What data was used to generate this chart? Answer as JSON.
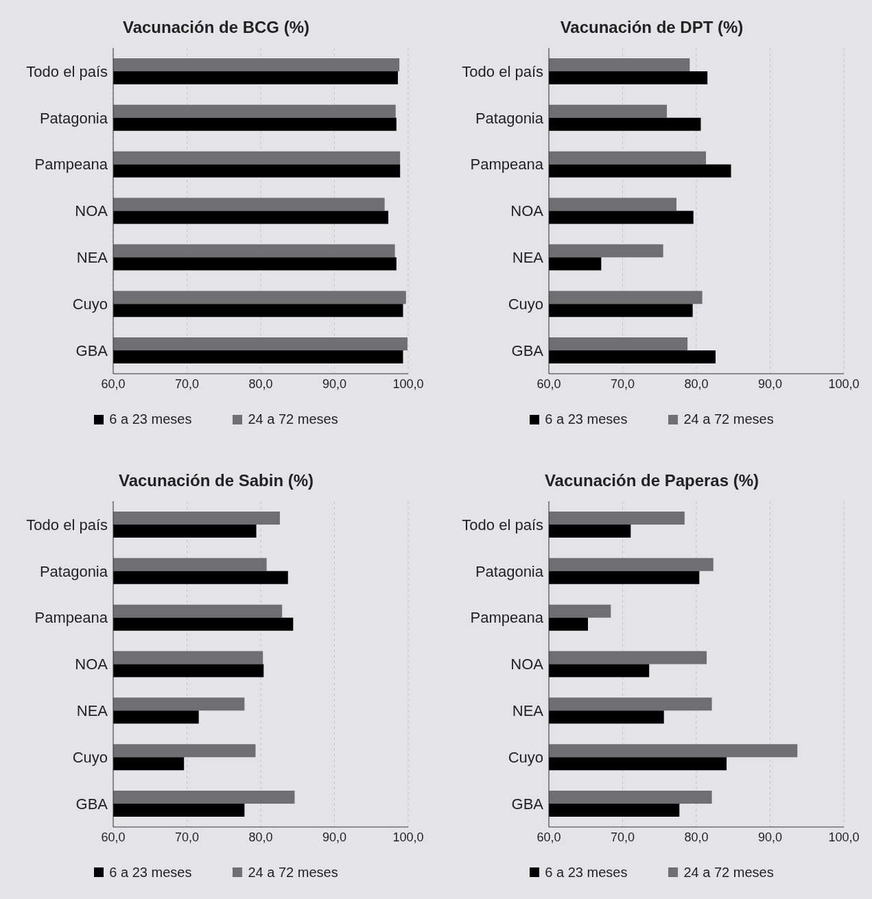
{
  "chart_data": [
    {
      "type": "bar",
      "orientation": "horizontal",
      "title": "Vacunación de BCG (%)",
      "categories": [
        "Todo el país",
        "Patagonia",
        "Pampeana",
        "NOA",
        "NEA",
        "Cuyo",
        "GBA"
      ],
      "series": [
        {
          "name": "6 a 23 meses",
          "color": "#000000",
          "values": [
            98.6,
            98.4,
            98.9,
            97.3,
            98.4,
            99.3,
            99.3
          ]
        },
        {
          "name": "24 a 72 meses",
          "color": "#6e6e73",
          "values": [
            98.8,
            98.3,
            98.9,
            96.8,
            98.2,
            99.7,
            99.9
          ]
        }
      ],
      "xlim": [
        60,
        100
      ],
      "xticks": [
        {
          "value": 60,
          "label": "60,0"
        },
        {
          "value": 70,
          "label": "70,0"
        },
        {
          "value": 80,
          "label": "80,0"
        },
        {
          "value": 90,
          "label": "90,0"
        },
        {
          "value": 100,
          "label": "100,0"
        }
      ],
      "grid": "x",
      "legend": "bottom"
    },
    {
      "type": "bar",
      "orientation": "horizontal",
      "title": "Vacunación de DPT (%)",
      "categories": [
        "Todo el país",
        "Patagonia",
        "Pampeana",
        "NOA",
        "NEA",
        "Cuyo",
        "GBA"
      ],
      "series": [
        {
          "name": "6 a 23 meses",
          "color": "#000000",
          "values": [
            81.5,
            80.6,
            84.7,
            79.6,
            67.1,
            79.5,
            82.6
          ]
        },
        {
          "name": "24 a 72 meses",
          "color": "#6e6e73",
          "values": [
            79.1,
            76.0,
            81.3,
            77.3,
            75.5,
            80.8,
            78.8
          ]
        }
      ],
      "xlim": [
        60,
        100
      ],
      "xticks": [
        {
          "value": 60,
          "label": "60,0"
        },
        {
          "value": 70,
          "label": "70,0"
        },
        {
          "value": 80,
          "label": "80,0"
        },
        {
          "value": 90,
          "label": "90,0"
        },
        {
          "value": 100,
          "label": "100,0"
        }
      ],
      "grid": "x",
      "legend": "bottom"
    },
    {
      "type": "bar",
      "orientation": "horizontal",
      "title": "Vacunación de Sabin (%)",
      "categories": [
        "Todo el país",
        "Patagonia",
        "Pampeana",
        "NOA",
        "NEA",
        "Cuyo",
        "GBA"
      ],
      "series": [
        {
          "name": "6 a 23 meses",
          "color": "#000000",
          "values": [
            79.4,
            83.7,
            84.4,
            80.4,
            71.6,
            69.6,
            77.8
          ]
        },
        {
          "name": "24 a 72 meses",
          "color": "#6e6e73",
          "values": [
            82.6,
            80.8,
            82.9,
            80.3,
            77.8,
            79.3,
            84.6
          ]
        }
      ],
      "xlim": [
        60,
        100
      ],
      "xticks": [
        {
          "value": 60,
          "label": "60,0"
        },
        {
          "value": 70,
          "label": "70,0"
        },
        {
          "value": 80,
          "label": "80,0"
        },
        {
          "value": 90,
          "label": "90,0"
        },
        {
          "value": 100,
          "label": "100,0"
        }
      ],
      "grid": "x",
      "legend": "bottom"
    },
    {
      "type": "bar",
      "orientation": "horizontal",
      "title": "Vacunación de Paperas (%)",
      "categories": [
        "Todo el país",
        "Patagonia",
        "Pampeana",
        "NOA",
        "NEA",
        "Cuyo",
        "GBA"
      ],
      "series": [
        {
          "name": "6 a 23 meses",
          "color": "#000000",
          "values": [
            71.1,
            80.4,
            65.3,
            73.6,
            75.6,
            84.1,
            77.7
          ]
        },
        {
          "name": "24 a 72 meses",
          "color": "#6e6e73",
          "values": [
            78.4,
            82.3,
            68.4,
            81.4,
            82.1,
            93.7,
            82.1
          ]
        }
      ],
      "xlim": [
        60,
        100
      ],
      "xticks": [
        {
          "value": 60,
          "label": "60,0"
        },
        {
          "value": 70,
          "label": "70,0"
        },
        {
          "value": 80,
          "label": "80,0"
        },
        {
          "value": 90,
          "label": "90,0"
        },
        {
          "value": 100,
          "label": "100,0"
        }
      ],
      "grid": "x",
      "legend": "bottom"
    }
  ]
}
